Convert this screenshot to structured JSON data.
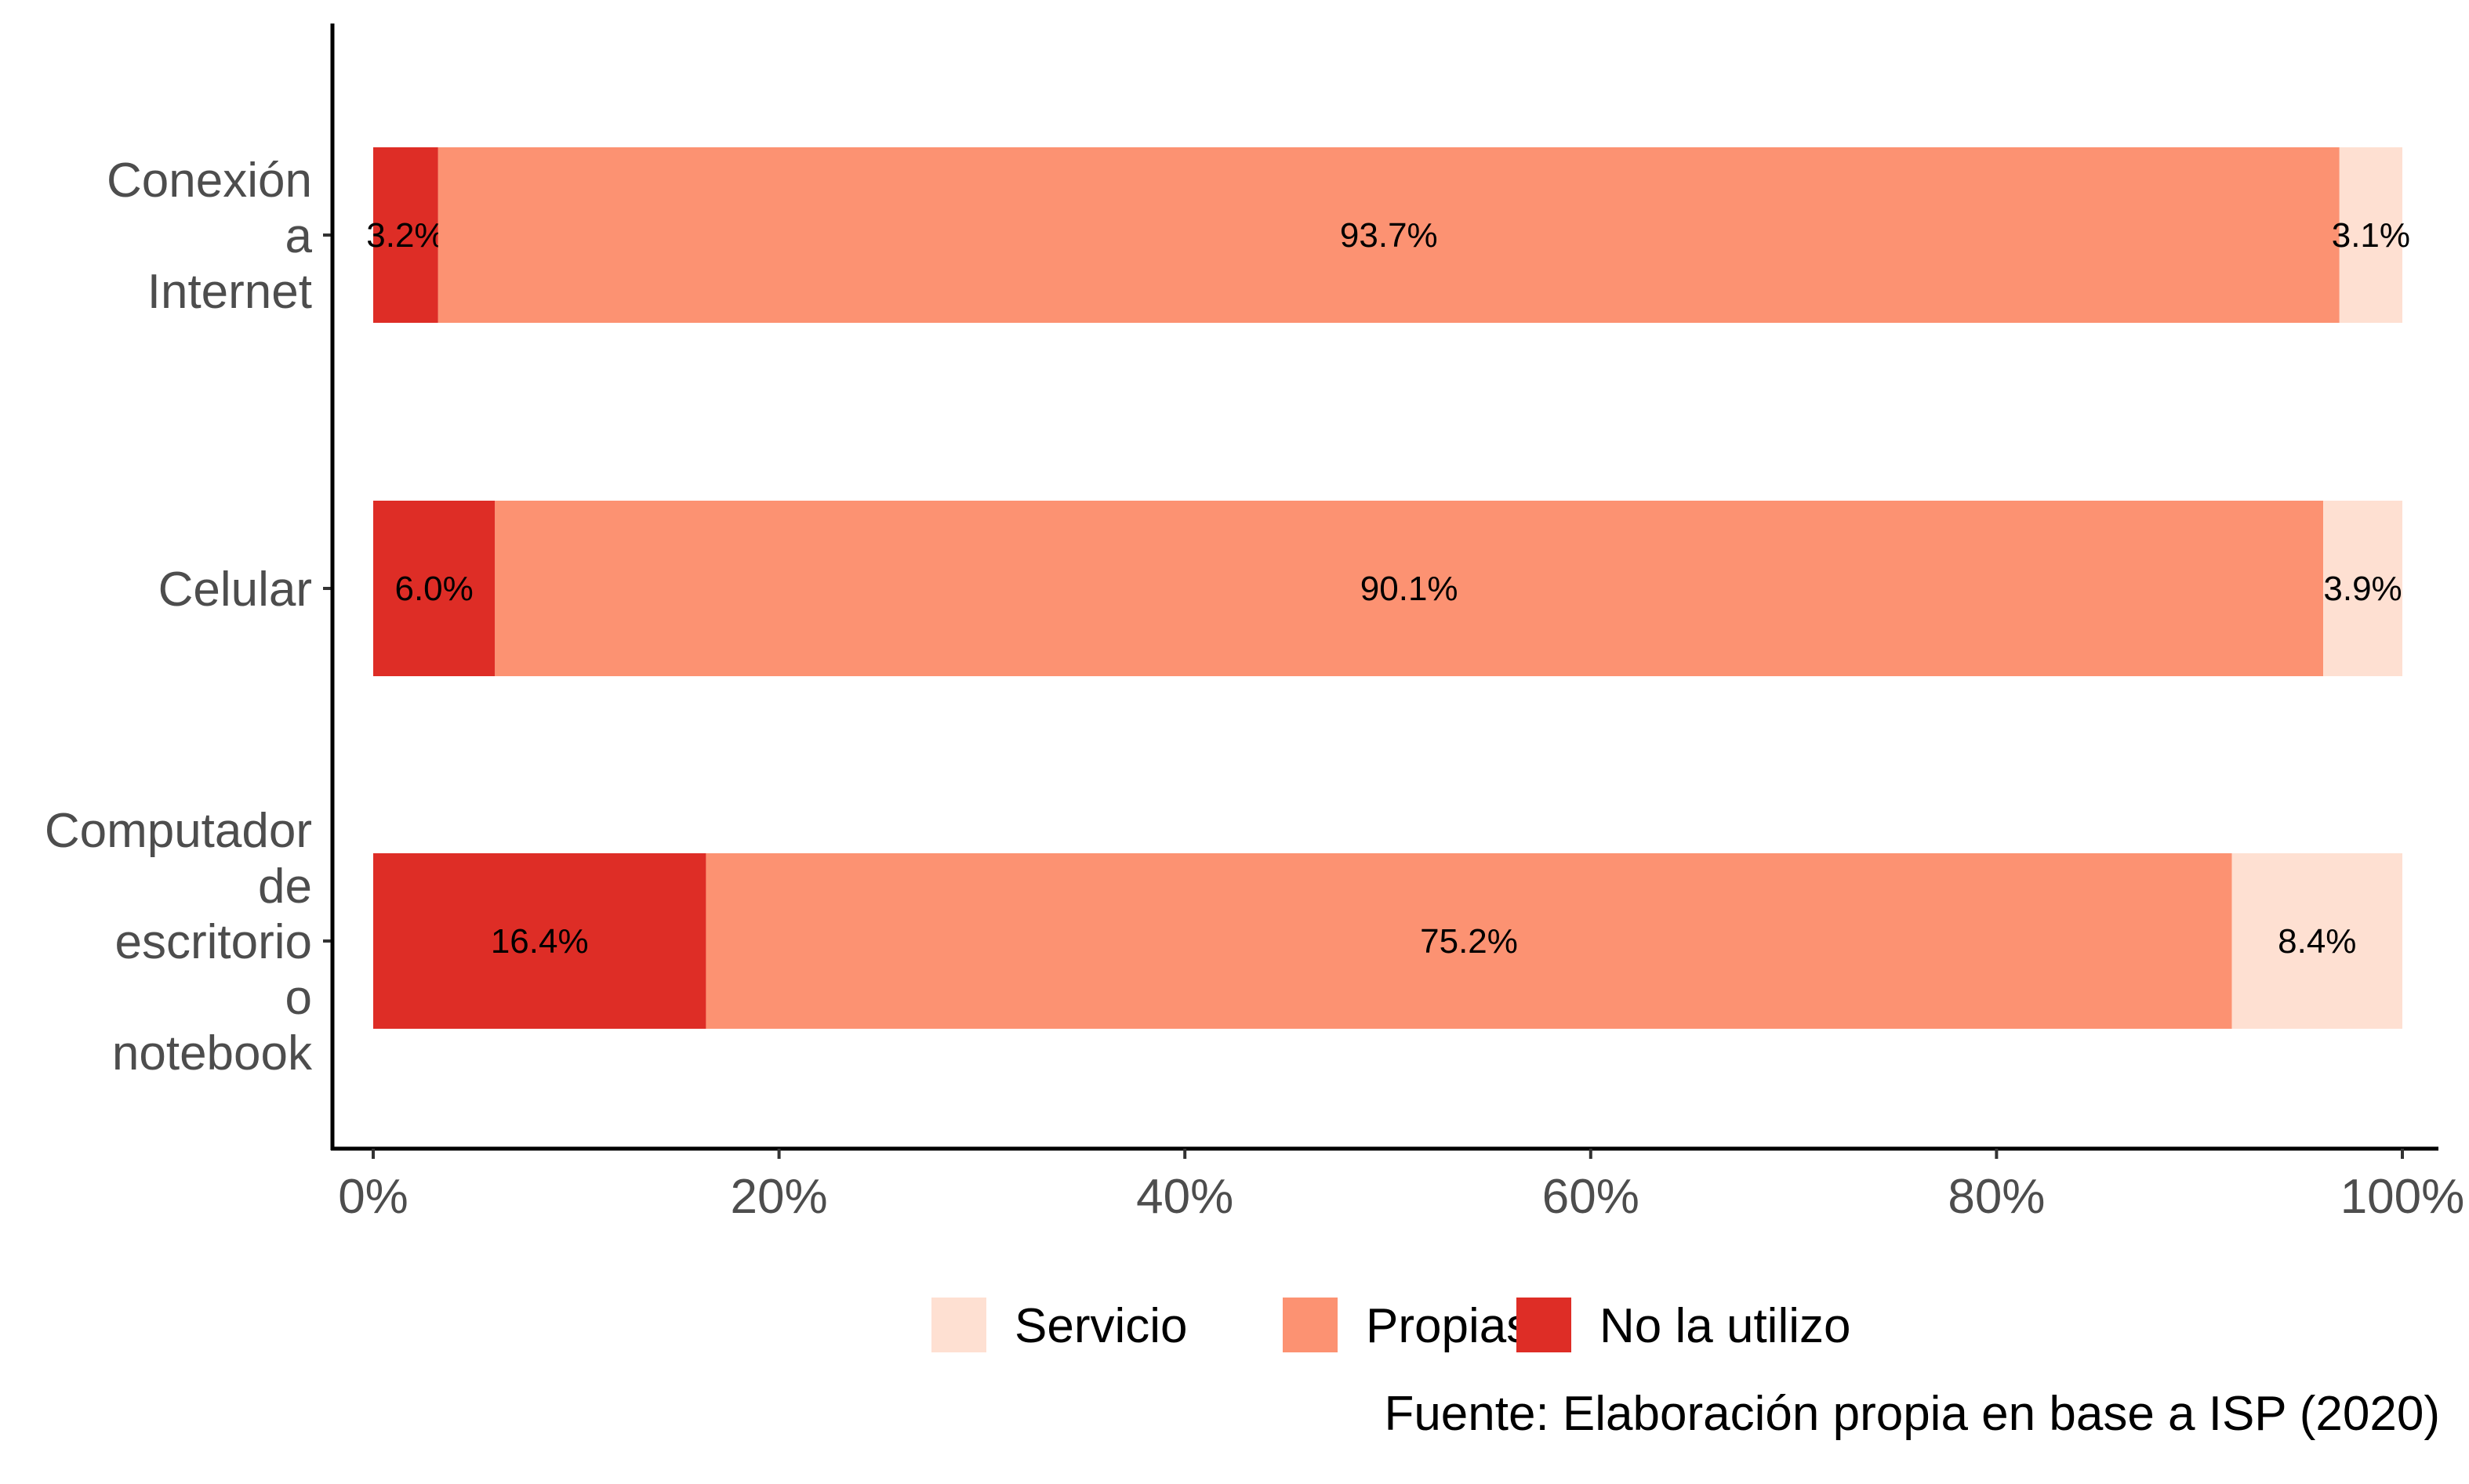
{
  "chart_data": {
    "type": "bar",
    "orientation": "horizontal",
    "stacked": true,
    "categories": [
      "Conexión a Internet",
      "Celular",
      "Computador de escritorio o notebook"
    ],
    "category_label_lines": [
      [
        "Conexión",
        "a",
        "Internet"
      ],
      [
        "Celular"
      ],
      [
        "Computador",
        "de",
        "escritorio",
        "o",
        "notebook"
      ]
    ],
    "series": [
      {
        "name": "No la utilizo",
        "color": "#de2d26",
        "values": [
          3.2,
          6.0,
          16.4
        ],
        "labels": [
          "3.2%",
          "6.0%",
          "16.4%"
        ]
      },
      {
        "name": "Propias",
        "color": "#fc9272",
        "values": [
          93.7,
          90.1,
          75.2
        ],
        "labels": [
          "93.7%",
          "90.1%",
          "75.2%"
        ]
      },
      {
        "name": "Servicio",
        "color": "#fee0d2",
        "values": [
          3.1,
          3.9,
          8.4
        ],
        "labels": [
          "3.1%",
          "3.9%",
          "8.4%"
        ]
      }
    ],
    "xlim": [
      0,
      100
    ],
    "xticks": [
      0,
      20,
      40,
      60,
      80,
      100
    ],
    "xtick_labels": [
      "0%",
      "20%",
      "40%",
      "60%",
      "80%",
      "100%"
    ],
    "xlabel": "",
    "ylabel": "",
    "grid": false,
    "legend": {
      "position": "bottom",
      "items": [
        {
          "name": "Servicio",
          "color": "#fee0d2"
        },
        {
          "name": "Propias",
          "color": "#fc9272"
        },
        {
          "name": "No la utilizo",
          "color": "#de2d26"
        }
      ]
    },
    "caption": "Fuente: Elaboración propia en base a ISP (2020)"
  }
}
